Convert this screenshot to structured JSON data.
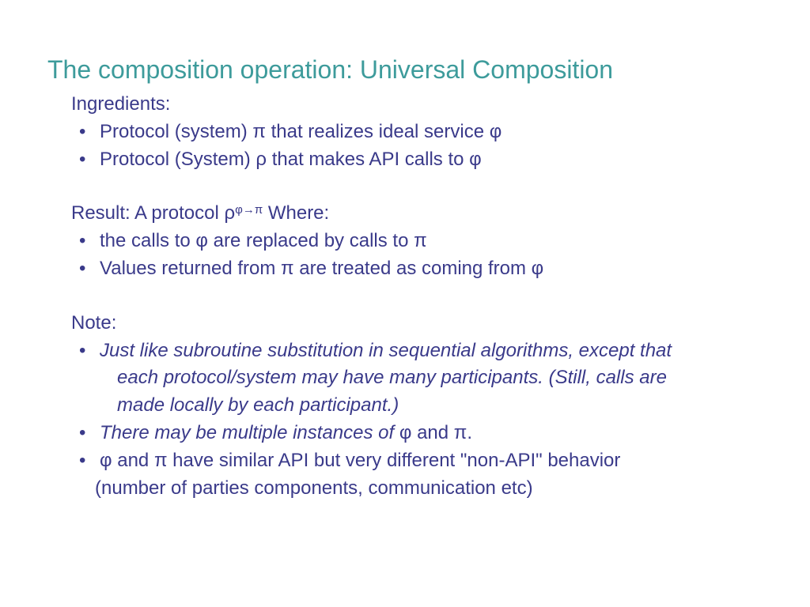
{
  "colors": {
    "title": "#3d9b9b",
    "body": "#3a3a8a",
    "background": "#ffffff"
  },
  "typography": {
    "title_fontsize": 32,
    "body_fontsize": 24,
    "sup_fontsize": 15,
    "font_family": "Arial"
  },
  "title": "The composition operation: Universal Composition",
  "ingredients": {
    "label": "Ingredients:",
    "items": [
      "Protocol (system) π  that realizes ideal service φ",
      "Protocol (System) ρ   that makes API calls to φ"
    ]
  },
  "result": {
    "label_prefix": "Result:   A protocol ρ",
    "sup": "φ→π",
    "label_suffix": " Where:",
    "items": [
      " the calls to φ are replaced by calls to π",
      "Values returned from π are treated as coming from φ"
    ]
  },
  "note": {
    "label": "Note:",
    "item1_line1": "Just like subroutine substitution in sequential algorithms, except that",
    "item1_line2": "each protocol/system may have many participants. (Still, calls are",
    "item1_line3": "made locally by each participant.)",
    "item2_italic": "There may be multiple instances of ",
    "item2_tail": "φ and π.",
    "item3_line1": " φ and π have similar API but very different \"non-API\" behavior",
    "item3_line2": "(number of parties components, communication etc)"
  }
}
